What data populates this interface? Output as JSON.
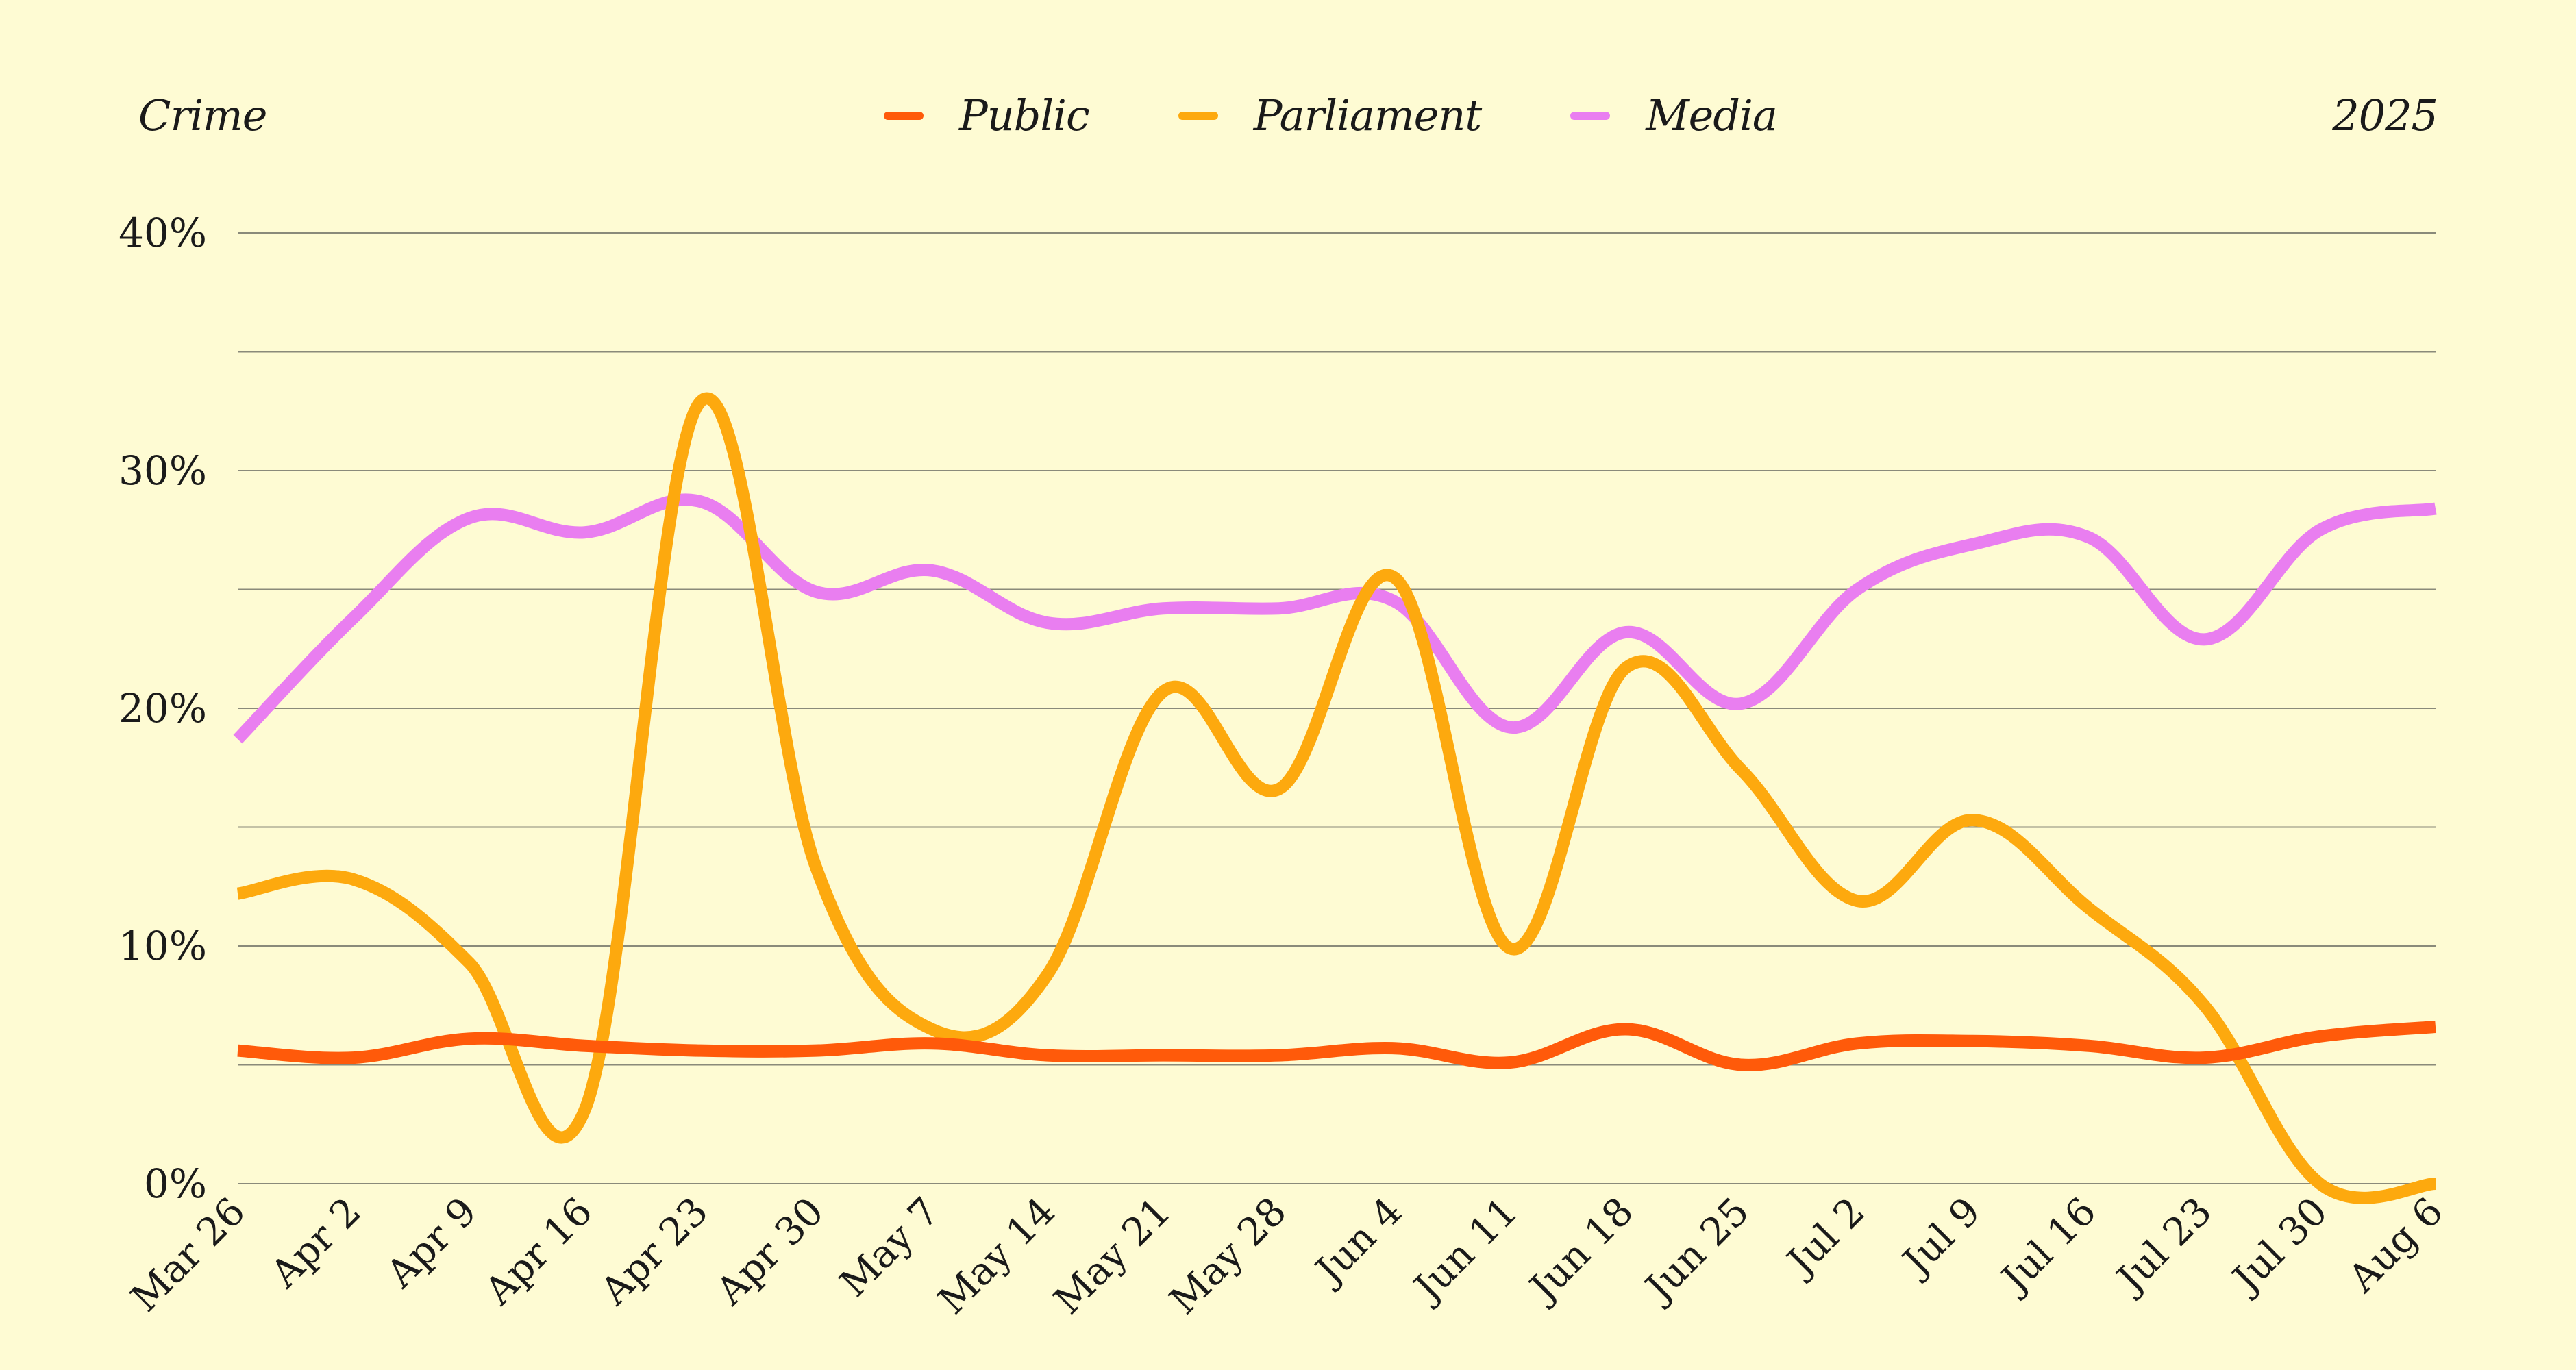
{
  "header": {
    "topic": "Crime",
    "year": "2025"
  },
  "colors": {
    "background": "#fefbd3",
    "grid": "#8a8a7a",
    "Public": "#ff5a0a",
    "Parliament": "#fda90e",
    "Media": "#e97ef0"
  },
  "chart_data": {
    "type": "line",
    "title": "",
    "xlabel": "",
    "ylabel": "",
    "ylim": [
      0,
      40
    ],
    "y_ticks": [
      0,
      10,
      20,
      30,
      40
    ],
    "y_tick_labels": [
      "0%",
      "10%",
      "20%",
      "30%",
      "40%"
    ],
    "grid": true,
    "legend": "top-center",
    "categories": [
      "Mar 26",
      "Apr 2",
      "Apr 9",
      "Apr 16",
      "Apr 23",
      "Apr 30",
      "May 7",
      "May 14",
      "May 21",
      "May 28",
      "Jun 4",
      "Jun 11",
      "Jun 18",
      "Jun 25",
      "Jul 2",
      "Jul 9",
      "Jul 16",
      "Jul 23",
      "Jul 30",
      "Aug 6"
    ],
    "series": [
      {
        "name": "Public",
        "color": "#ff5a0a",
        "values": [
          5.6,
          5.3,
          6.1,
          5.8,
          5.6,
          5.6,
          5.9,
          5.4,
          5.4,
          5.4,
          5.7,
          5.1,
          6.5,
          5.0,
          5.9,
          6.0,
          5.8,
          5.3,
          6.2,
          6.6
        ]
      },
      {
        "name": "Parliament",
        "color": "#fda90e",
        "values": [
          12.2,
          12.8,
          9.3,
          3.1,
          32.9,
          13.3,
          6.5,
          8.8,
          20.7,
          16.6,
          25.5,
          9.9,
          21.7,
          17.4,
          11.9,
          15.3,
          11.6,
          7.5,
          0.0,
          0.0
        ]
      },
      {
        "name": "Media",
        "color": "#e97ef0",
        "values": [
          18.7,
          23.8,
          28.0,
          27.4,
          28.7,
          24.9,
          25.8,
          23.6,
          24.2,
          24.2,
          24.5,
          19.2,
          23.2,
          20.2,
          25.0,
          26.9,
          27.2,
          22.9,
          27.5,
          28.4
        ]
      }
    ]
  }
}
